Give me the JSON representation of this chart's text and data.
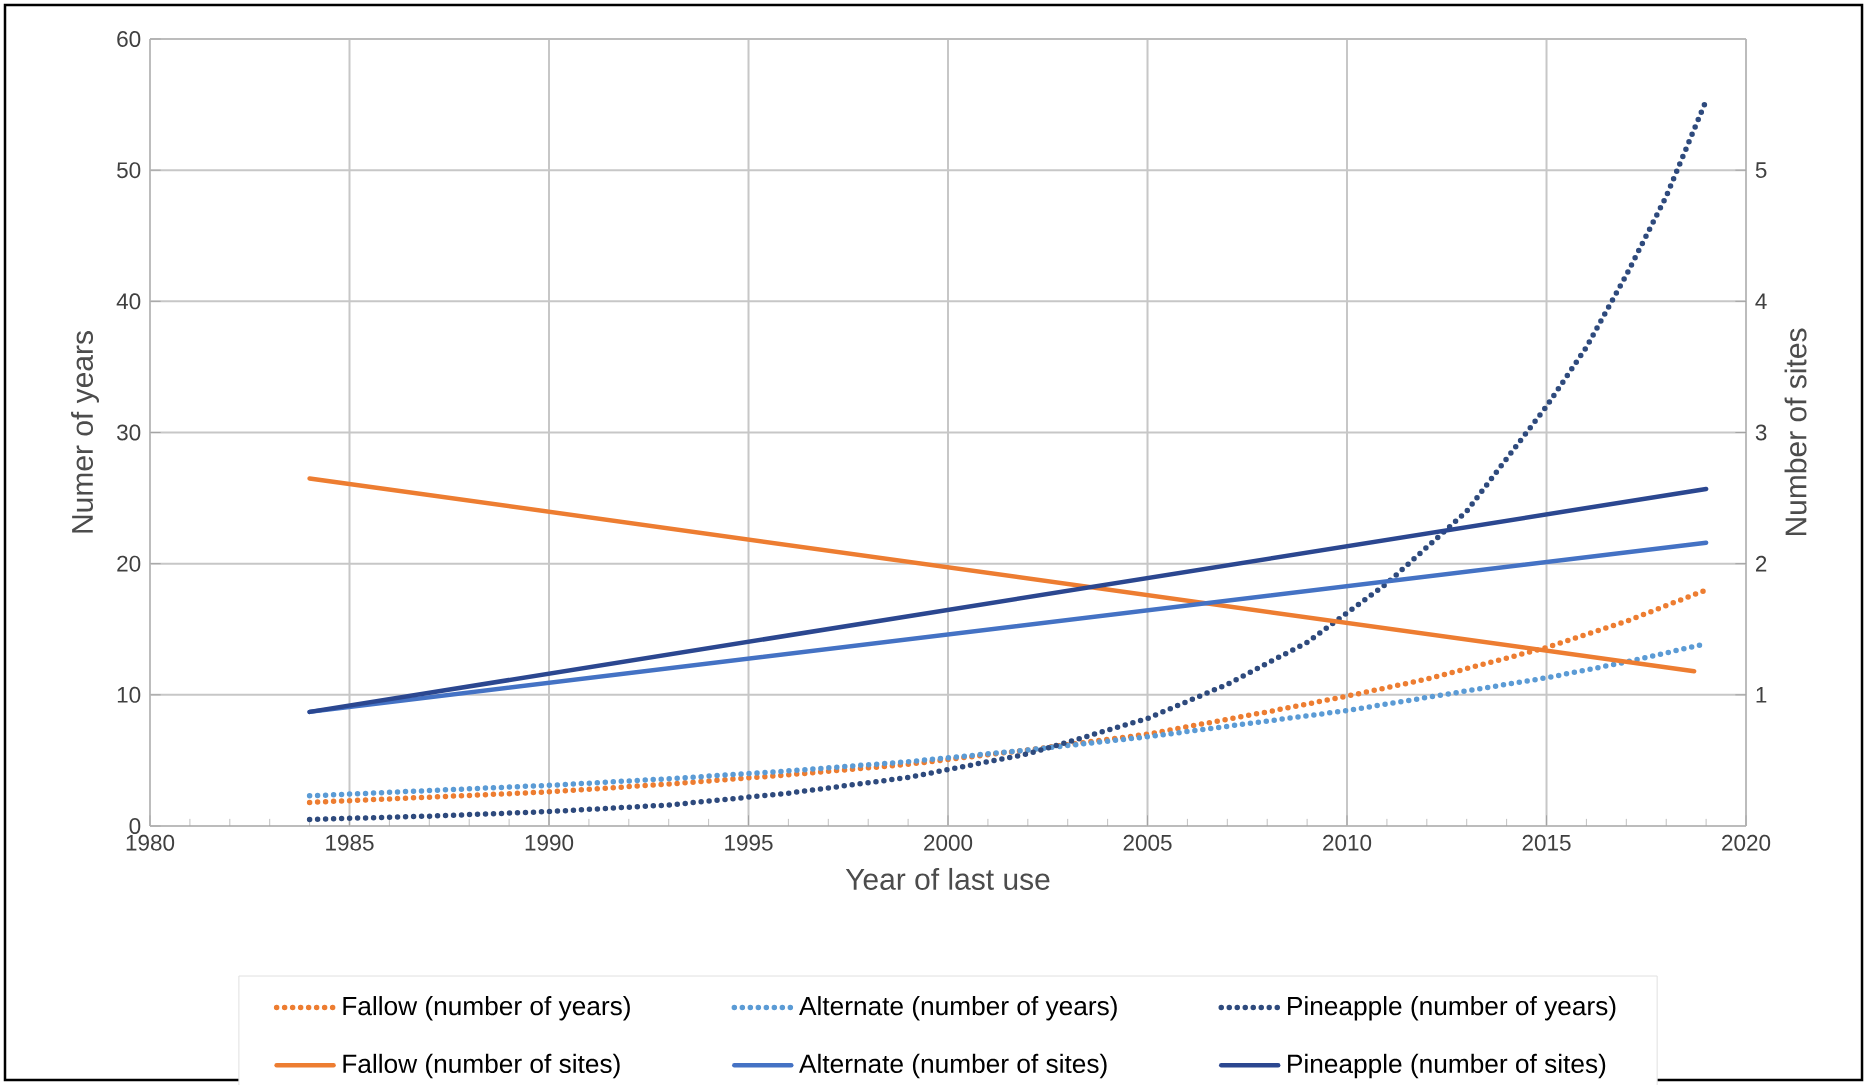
{
  "chart_data": {
    "type": "line",
    "xlabel": "Year of last use",
    "ylabel": "Numer of years",
    "y2label": "Number of sites",
    "xlim": [
      1980,
      2020
    ],
    "xticks": [
      1980,
      1985,
      1990,
      1995,
      2000,
      2005,
      2010,
      2015,
      2020
    ],
    "ylim": [
      0,
      60
    ],
    "yticks": [
      0,
      10,
      20,
      30,
      40,
      50,
      60
    ],
    "y2lim": [
      0,
      6
    ],
    "y2ticks": [
      1,
      2,
      3,
      4,
      5
    ],
    "grid": true,
    "legend": "bottom",
    "marker": "none",
    "series": [
      {
        "name": "Fallow (number of years)",
        "color": "#ed7d31",
        "line_style": "dotted",
        "x": [
          1984,
          1987,
          1990,
          1993,
          1996,
          1999,
          2002,
          2005,
          2008,
          2010,
          2012,
          2015,
          2017,
          2019
        ],
        "values": [
          1.8,
          2.2,
          2.6,
          3.2,
          3.9,
          4.7,
          5.8,
          7.0,
          8.7,
          9.9,
          11.2,
          13.6,
          15.6,
          18.0
        ]
      },
      {
        "name": "Alternate (number of years)",
        "color": "#5b9bd5",
        "line_style": "dotted",
        "x": [
          1984,
          1987,
          1990,
          1993,
          1996,
          1999,
          2002,
          2005,
          2008,
          2010,
          2012,
          2015,
          2017,
          2019
        ],
        "values": [
          2.3,
          2.7,
          3.1,
          3.6,
          4.2,
          4.9,
          5.8,
          6.8,
          8.0,
          8.8,
          9.8,
          11.3,
          12.5,
          13.9
        ]
      },
      {
        "name": "Pineapple (number of years)",
        "color": "#2e4a7d",
        "line_style": "dotted",
        "x": [
          1984,
          1987,
          1990,
          1993,
          1996,
          1999,
          2002,
          2005,
          2007,
          2009,
          2011,
          2013,
          2015,
          2016,
          2017,
          2018,
          2019
        ],
        "values": [
          0.5,
          0.75,
          1.1,
          1.6,
          2.5,
          3.7,
          5.5,
          8.2,
          10.8,
          14.0,
          18.5,
          24.0,
          32.0,
          36.5,
          42.0,
          48.0,
          55.3
        ]
      },
      {
        "name": "Fallow (number of sites)",
        "color": "#ed7d31",
        "line_style": "solid",
        "axis": "y2",
        "x": [
          1984,
          2018.7
        ],
        "values": [
          2.65,
          1.18
        ]
      },
      {
        "name": "Alternate (number of sites)",
        "color": "#4472c4",
        "line_style": "solid",
        "axis": "y2",
        "x": [
          1984,
          2019
        ],
        "values": [
          0.87,
          2.16
        ]
      },
      {
        "name": "Pineapple (number of sites)",
        "color": "#2b4790",
        "line_style": "solid",
        "axis": "y2",
        "x": [
          1984,
          2019
        ],
        "values": [
          0.87,
          2.57
        ]
      }
    ]
  }
}
